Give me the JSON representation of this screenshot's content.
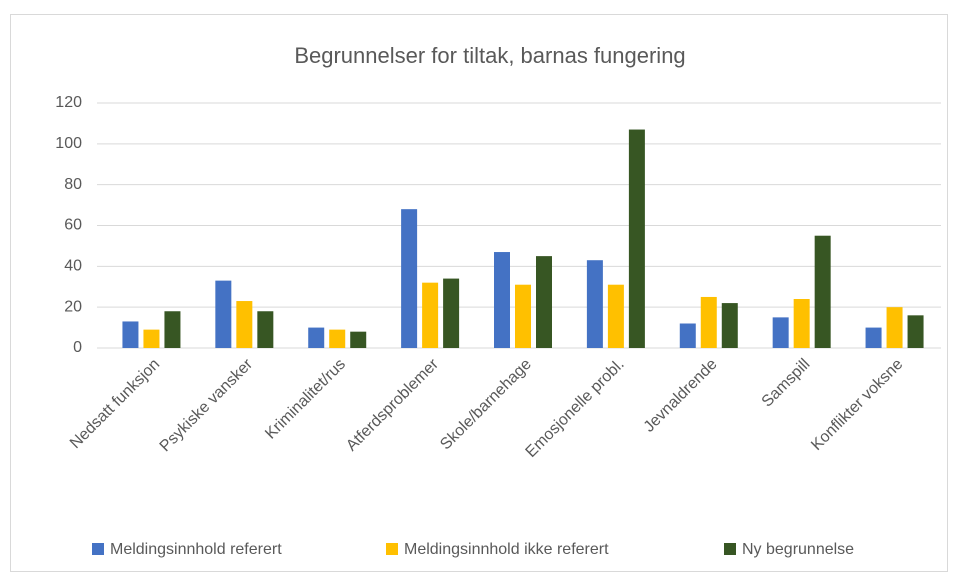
{
  "chart_data": {
    "type": "bar",
    "title": "Begrunnelser for tiltak, barnas fungering",
    "categories": [
      "Nedsatt funksjon",
      "Psykiske vansker",
      "Kriminalitet/rus",
      "Atferdsproblemer",
      "Skole/barnehage",
      "Emosjonelle probl.",
      "Jevnaldrende",
      "Samspill",
      "Konflikter voksne"
    ],
    "series": [
      {
        "name": "Meldingsinnhold referert",
        "color": "#4472c4",
        "values": [
          13,
          33,
          10,
          68,
          47,
          43,
          12,
          15,
          10
        ]
      },
      {
        "name": "Meldingsinnhold ikke referert",
        "color": "#ffc000",
        "values": [
          9,
          23,
          9,
          32,
          31,
          31,
          25,
          24,
          20
        ]
      },
      {
        "name": "Ny begrunnelse",
        "color": "#375623",
        "values": [
          18,
          18,
          8,
          34,
          45,
          107,
          22,
          55,
          16
        ]
      }
    ],
    "ylim": [
      0,
      120
    ],
    "yticks": [
      0,
      20,
      40,
      60,
      80,
      100,
      120
    ],
    "grid": true,
    "legend": "bottom"
  }
}
